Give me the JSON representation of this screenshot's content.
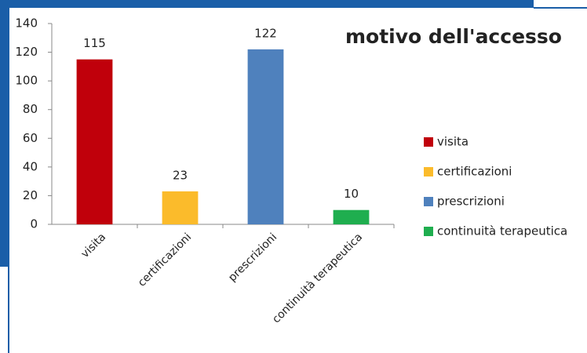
{
  "chart_data": {
    "type": "bar",
    "title": "motivo dell'accesso",
    "categories": [
      "visita",
      "certificazioni",
      "prescrizioni",
      "continuità terapeutica"
    ],
    "values": [
      115,
      23,
      122,
      10
    ],
    "colors": [
      "#c0000b",
      "#fbbb2b",
      "#4f81bd",
      "#1fae4f"
    ],
    "ylim": [
      0,
      140
    ],
    "yticks": [
      0,
      20,
      40,
      60,
      80,
      100,
      120,
      140
    ],
    "grid": false,
    "legend": "right"
  }
}
